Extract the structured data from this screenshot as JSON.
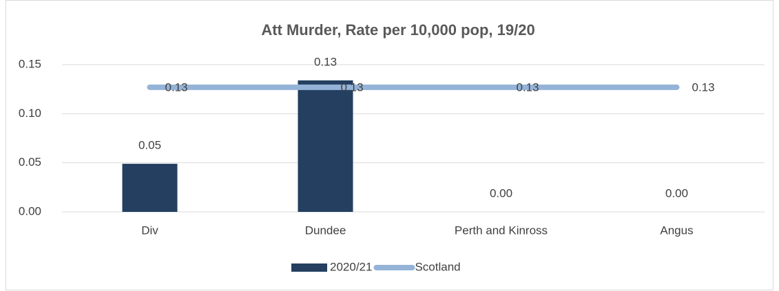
{
  "chart_data": {
    "type": "bar",
    "title": "Att Murder, Rate per 10,000 pop, 19/20",
    "categories": [
      "Div",
      "Dundee",
      "Perth and Kinross",
      "Angus"
    ],
    "series": [
      {
        "name": "2020/21",
        "type": "bar",
        "color": "#243f60",
        "values": [
          0.049,
          0.134,
          0,
          0
        ],
        "value_labels": [
          "0.05",
          "0.13",
          "0.00",
          "0.00"
        ]
      },
      {
        "name": "Scotland",
        "type": "line",
        "color": "#95b3d7",
        "values": [
          0.127,
          0.127,
          0.127,
          0.127
        ],
        "value_labels": [
          "0.13",
          "0.13",
          "0.13",
          "0.13"
        ]
      }
    ],
    "ylim": [
      0,
      0.15
    ],
    "yticks": [
      {
        "value": 0,
        "label": "0.00"
      },
      {
        "value": 0.05,
        "label": "0.05"
      },
      {
        "value": 0.1,
        "label": "0.10"
      },
      {
        "value": 0.15,
        "label": "0.15"
      }
    ],
    "grid": true,
    "legend": "bottom"
  }
}
